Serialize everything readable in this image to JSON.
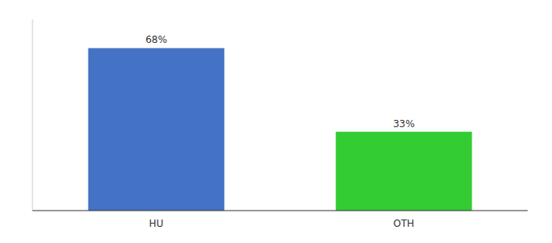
{
  "chart_data": {
    "type": "bar",
    "categories": [
      "HU",
      "OTH"
    ],
    "values": [
      68,
      33
    ],
    "value_labels": [
      "68%",
      "33%"
    ],
    "colors": [
      "#4472c4",
      "#33cc33"
    ],
    "ylim": [
      0,
      80
    ],
    "yticks": [],
    "grid": false,
    "data_labels": true,
    "tick_labels": "x"
  }
}
